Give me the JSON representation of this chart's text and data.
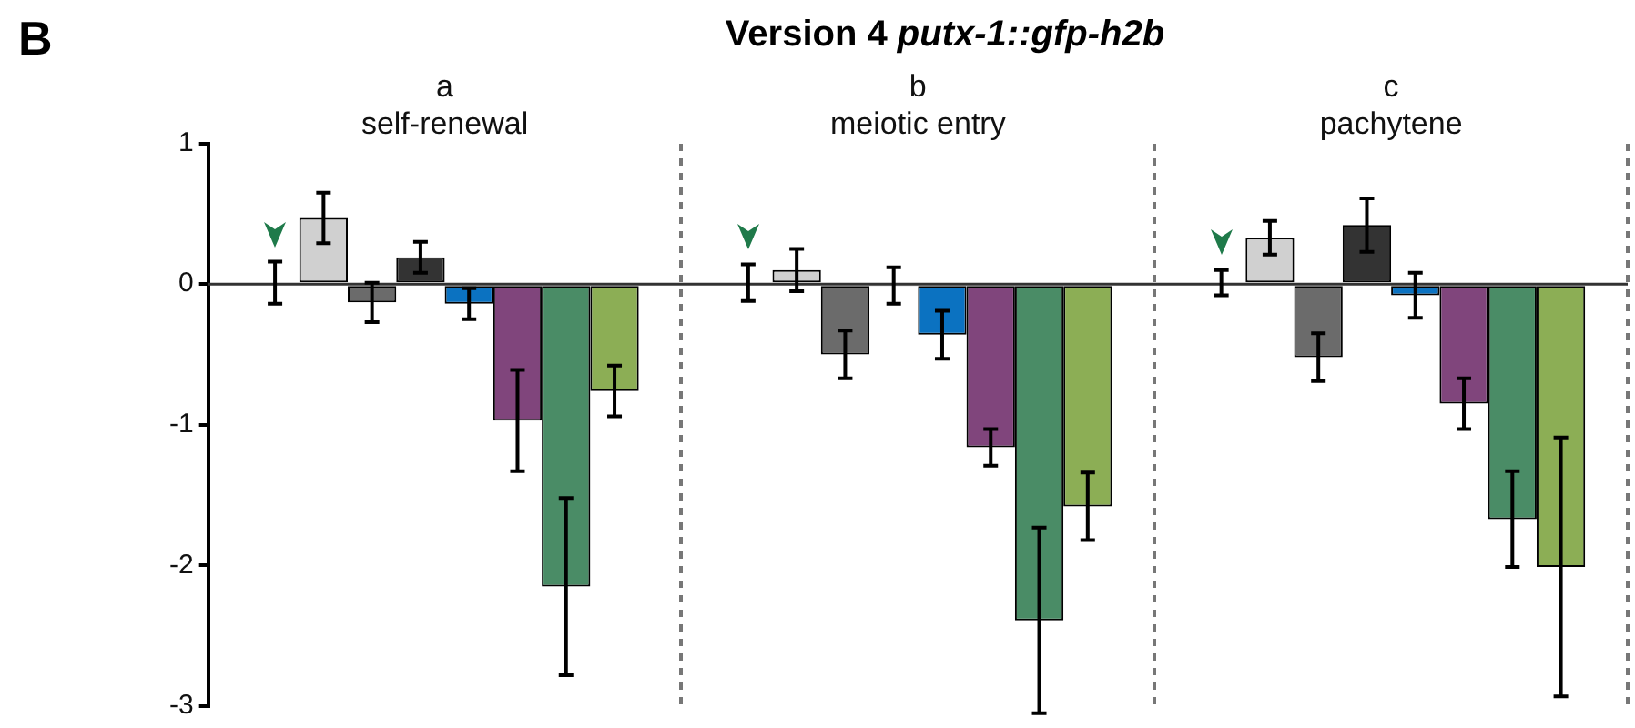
{
  "chart_data": {
    "type": "bar",
    "title": "Version 4 putx-1::gfp-h2b",
    "annotations": [
      "B"
    ],
    "categories": [
      "a\nself-renewal",
      "b\nmeiotic entry",
      "c\npachytene"
    ],
    "series": [
      {
        "color": "#ffffff",
        "values": [
          0.01,
          0.01,
          0.01
        ],
        "errors": [
          0.15,
          0.13,
          0.09
        ]
      },
      {
        "color": "#d0d0d0",
        "values": [
          0.47,
          0.1,
          0.33
        ],
        "errors": [
          0.18,
          0.15,
          0.12
        ]
      },
      {
        "color": "#6b6b6b",
        "values": [
          -0.13,
          -0.5,
          -0.52
        ],
        "errors": [
          0.14,
          0.17,
          0.17
        ]
      },
      {
        "color": "#333333",
        "values": [
          0.19,
          -0.01,
          0.42
        ],
        "errors": [
          0.11,
          0.13,
          0.19
        ]
      },
      {
        "color": "#0b72c1",
        "values": [
          -0.14,
          -0.36,
          -0.08
        ],
        "errors": [
          0.11,
          0.17,
          0.16
        ]
      },
      {
        "color": "#80457c",
        "values": [
          -0.97,
          -1.16,
          -0.85
        ],
        "errors": [
          0.36,
          0.13,
          0.18
        ]
      },
      {
        "color": "#4a8c66",
        "values": [
          -2.15,
          -2.39,
          -1.67
        ],
        "errors": [
          0.63,
          0.66,
          0.34
        ]
      },
      {
        "color": "#8cae55",
        "values": [
          -0.76,
          -1.58,
          -2.01
        ],
        "errors": [
          0.18,
          0.24,
          0.92
        ]
      }
    ],
    "ylim": [
      -3,
      1
    ],
    "yticks": [
      -3,
      -2,
      -1,
      0,
      1
    ],
    "grid": "x",
    "legend": false
  }
}
